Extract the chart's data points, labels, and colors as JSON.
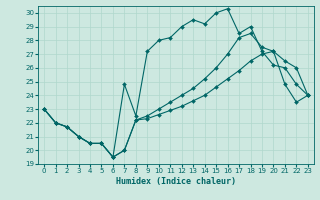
{
  "xlabel": "Humidex (Indice chaleur)",
  "bg_color": "#cde8e0",
  "line_color": "#006666",
  "grid_color": "#b0d8cc",
  "xlim": [
    -0.5,
    23.5
  ],
  "ylim": [
    19,
    30.5
  ],
  "xticks": [
    0,
    1,
    2,
    3,
    4,
    5,
    6,
    7,
    8,
    9,
    10,
    11,
    12,
    13,
    14,
    15,
    16,
    17,
    18,
    19,
    20,
    21,
    22,
    23
  ],
  "yticks": [
    19,
    20,
    21,
    22,
    23,
    24,
    25,
    26,
    27,
    28,
    29,
    30
  ],
  "line1_x": [
    0,
    1,
    2,
    3,
    4,
    5,
    6,
    7,
    8,
    9,
    10,
    11,
    12,
    13,
    14,
    15,
    16,
    17,
    18,
    19,
    20,
    21,
    22,
    23
  ],
  "line1_y": [
    23,
    22,
    21.7,
    21.0,
    20.5,
    20.5,
    19.5,
    20.0,
    22.2,
    22.3,
    22.6,
    22.9,
    23.2,
    23.6,
    24.0,
    24.6,
    25.2,
    25.8,
    26.5,
    27.0,
    27.2,
    24.8,
    23.5,
    24.0
  ],
  "line2_x": [
    0,
    1,
    2,
    3,
    4,
    5,
    6,
    7,
    8,
    9,
    10,
    11,
    12,
    13,
    14,
    15,
    16,
    17,
    18,
    19,
    20,
    21,
    22,
    23
  ],
  "line2_y": [
    23,
    22,
    21.7,
    21.0,
    20.5,
    20.5,
    19.5,
    24.8,
    22.5,
    27.2,
    28.0,
    28.2,
    29.0,
    29.5,
    29.2,
    30.0,
    30.3,
    28.5,
    29.0,
    27.2,
    26.2,
    26.0,
    24.8,
    24.0
  ],
  "line3_x": [
    0,
    1,
    2,
    3,
    4,
    5,
    6,
    7,
    8,
    9,
    10,
    11,
    12,
    13,
    14,
    15,
    16,
    17,
    18,
    19,
    20,
    21,
    22,
    23
  ],
  "line3_y": [
    23,
    22,
    21.7,
    21.0,
    20.5,
    20.5,
    19.5,
    20.0,
    22.2,
    22.5,
    23.0,
    23.5,
    24.0,
    24.5,
    25.2,
    26.0,
    27.0,
    28.2,
    28.5,
    27.5,
    27.2,
    26.5,
    26.0,
    24.0
  ]
}
